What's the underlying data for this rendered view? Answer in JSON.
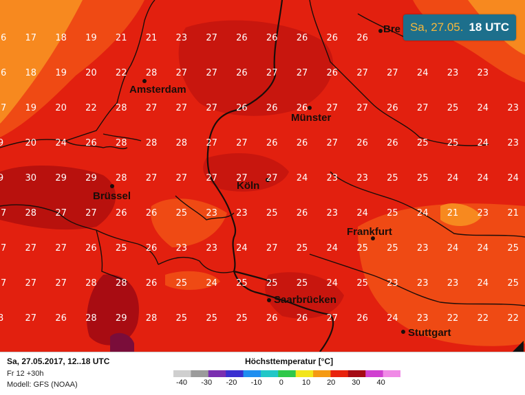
{
  "badge": {
    "date": "Sa, 27.05.",
    "hour": "18 UTC"
  },
  "footer": {
    "run": "Sa, 27.05.2017, 12..18 UTC",
    "forecast": "Fr 12 +30h",
    "model": "Modell: GFS (NOAA)"
  },
  "legend": {
    "title": "Höchsttemperatur [°C]",
    "ticks": [
      "-40",
      "-30",
      "-20",
      "-10",
      "0",
      "10",
      "20",
      "30",
      "40"
    ],
    "colors": [
      "#cfcfcf",
      "#9b9b9b",
      "#7b2fb0",
      "#3a2fd0",
      "#1f8ef0",
      "#22c7c7",
      "#2fc84a",
      "#f2e51a",
      "#f59a12",
      "#e8220c",
      "#a50a14",
      "#d040d0",
      "#f08ae6"
    ]
  },
  "cities": [
    {
      "name": "Amsterdam"
    },
    {
      "name": "Münster"
    },
    {
      "name": "Brüssel"
    },
    {
      "name": "Köln"
    },
    {
      "name": "Frankfurt"
    },
    {
      "name": "Saarbrücken"
    },
    {
      "name": "Stuttgart"
    },
    {
      "name": "Bre"
    }
  ],
  "map_colors": {
    "deep_red": "#b8110d",
    "red": "#e2200f",
    "orange_red": "#ef4a14",
    "orange": "#f7891f",
    "border": "#1a0d0a"
  },
  "temperatures": [
    [
      "17",
      "17",
      "18",
      "19",
      "21",
      "21",
      "23",
      "27",
      "26",
      "26",
      "26",
      "26",
      "26",
      "",
      "",
      "",
      ""
    ],
    [
      "16",
      "17",
      "18",
      "19",
      "21",
      "21",
      "23",
      "27",
      "26",
      "26",
      "26",
      "26",
      "26",
      "",
      "",
      "",
      ""
    ],
    [
      "16",
      "18",
      "19",
      "20",
      "22",
      "28",
      "27",
      "27",
      "26",
      "27",
      "27",
      "26",
      "27",
      "27",
      "24",
      "23",
      "23"
    ],
    [
      "17",
      "19",
      "20",
      "22",
      "28",
      "27",
      "27",
      "27",
      "26",
      "26",
      "26",
      "27",
      "27",
      "26",
      "27",
      "25",
      "24",
      "23"
    ],
    [
      "9",
      "20",
      "24",
      "26",
      "28",
      "28",
      "28",
      "27",
      "27",
      "26",
      "26",
      "27",
      "26",
      "26",
      "25",
      "25",
      "24",
      "23"
    ],
    [
      "9",
      "30",
      "29",
      "29",
      "28",
      "27",
      "27",
      "27",
      "27",
      "27",
      "24",
      "23",
      "23",
      "25",
      "25",
      "24",
      "24",
      "24"
    ],
    [
      "27",
      "28",
      "27",
      "27",
      "26",
      "26",
      "25",
      "23",
      "23",
      "25",
      "26",
      "23",
      "24",
      "25",
      "24",
      "21",
      "23",
      "21"
    ],
    [
      "27",
      "27",
      "27",
      "26",
      "25",
      "26",
      "23",
      "23",
      "24",
      "27",
      "25",
      "24",
      "25",
      "25",
      "23",
      "24",
      "24",
      "25"
    ],
    [
      "27",
      "27",
      "27",
      "28",
      "28",
      "26",
      "25",
      "24",
      "25",
      "25",
      "25",
      "24",
      "25",
      "23",
      "23",
      "23",
      "24",
      "25"
    ],
    [
      "8",
      "27",
      "26",
      "28",
      "29",
      "28",
      "25",
      "25",
      "25",
      "26",
      "26",
      "27",
      "26",
      "24",
      "23",
      "22",
      "22",
      "22"
    ]
  ]
}
